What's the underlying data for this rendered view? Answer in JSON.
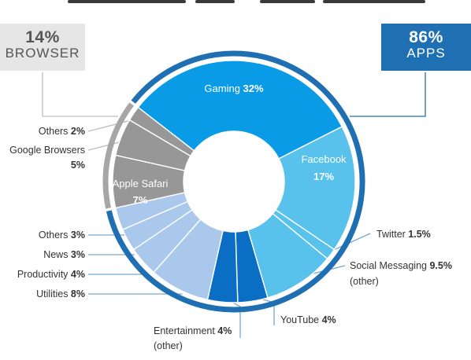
{
  "chart_data": {
    "type": "pie",
    "title": "",
    "groups": [
      {
        "name": "BROWSER",
        "percent_label": "14%",
        "value": 14
      },
      {
        "name": "APPS",
        "percent_label": "86%",
        "value": 86
      }
    ],
    "slices": [
      {
        "key": "gaming",
        "label": "Gaming",
        "value_label": "32%",
        "value": 32,
        "group": "APPS",
        "color": "#0a9be6"
      },
      {
        "key": "facebook",
        "label": "Facebook",
        "value_label": "17%",
        "value": 17,
        "group": "APPS",
        "color": "#59c2ec"
      },
      {
        "key": "twitter",
        "label": "Twitter",
        "value_label": "1.5%",
        "value": 1.5,
        "group": "APPS",
        "color": "#59c2ec"
      },
      {
        "key": "social",
        "label": "Social Messaging",
        "value_label": "9.5%",
        "value": 9.5,
        "sublabel": "(other)",
        "group": "APPS",
        "color": "#59c2ec"
      },
      {
        "key": "youtube",
        "label": "YouTube",
        "value_label": "4%",
        "value": 4,
        "group": "APPS",
        "color": "#0a6fc4"
      },
      {
        "key": "entertainment",
        "label": "Entertainment",
        "value_label": "4%",
        "value": 4,
        "sublabel": "(other)",
        "group": "APPS",
        "color": "#0a6fc4"
      },
      {
        "key": "utilities",
        "label": "Utilities",
        "value_label": "8%",
        "value": 8,
        "group": "APPS",
        "color": "#a9c8ec"
      },
      {
        "key": "productivity",
        "label": "Productivity",
        "value_label": "4%",
        "value": 4,
        "group": "APPS",
        "color": "#a9c8ec"
      },
      {
        "key": "news",
        "label": "News",
        "value_label": "3%",
        "value": 3,
        "group": "APPS",
        "color": "#a9c8ec"
      },
      {
        "key": "others_apps",
        "label": "Others",
        "value_label": "3%",
        "value": 3,
        "group": "APPS",
        "color": "#a9c8ec"
      },
      {
        "key": "safari",
        "label": "Apple Safari",
        "value_label": "7%",
        "value": 7,
        "group": "BROWSER",
        "color": "#979797"
      },
      {
        "key": "google",
        "label": "Google Browsers",
        "value_label": "5%",
        "value": 5,
        "group": "BROWSER",
        "color": "#979797"
      },
      {
        "key": "others_browser",
        "label": "Others",
        "value_label": "2%",
        "value": 2,
        "group": "BROWSER",
        "color": "#979797"
      }
    ],
    "colors": {
      "apps_ring": "#1f6fb3",
      "browser_ring": "#a6a6a6",
      "leader": "#7aa7cf",
      "leader_gray": "#bdbdbd"
    },
    "legend": "none"
  }
}
